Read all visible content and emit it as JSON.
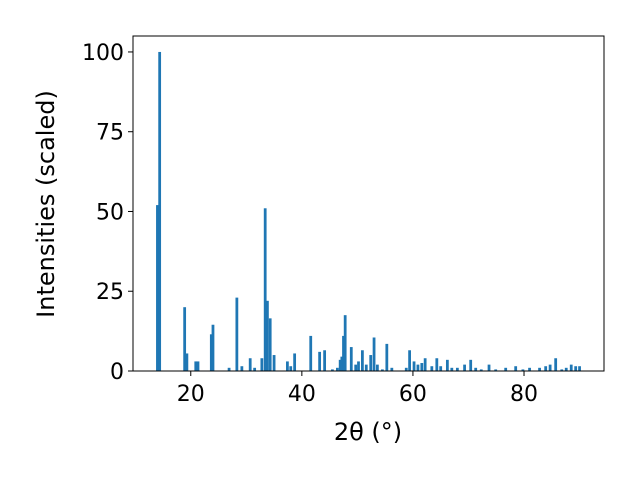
{
  "chart_data": {
    "type": "bar",
    "xlabel": "2θ (°)",
    "ylabel": "Intensities (scaled)",
    "color": "#1f77b4",
    "xlim": [
      9.6,
      94.4
    ],
    "ylim": [
      0,
      105
    ],
    "xticks": [
      20,
      40,
      60,
      80
    ],
    "yticks": [
      0,
      25,
      50,
      75,
      100
    ],
    "x": [
      14.0,
      14.4,
      18.9,
      19.3,
      20.9,
      21.3,
      23.7,
      24.0,
      26.9,
      28.3,
      29.2,
      30.7,
      31.5,
      32.8,
      33.4,
      33.8,
      34.3,
      35.0,
      37.4,
      38.0,
      38.7,
      41.6,
      43.2,
      44.1,
      45.5,
      46.4,
      46.9,
      47.2,
      47.5,
      47.8,
      48.9,
      49.7,
      50.2,
      50.9,
      51.6,
      52.4,
      53.0,
      53.6,
      54.5,
      55.3,
      56.2,
      58.8,
      59.4,
      60.2,
      60.9,
      61.6,
      62.2,
      63.4,
      64.3,
      65.0,
      66.2,
      67.0,
      68.0,
      69.3,
      70.4,
      71.3,
      72.3,
      73.7,
      74.9,
      76.7,
      78.5,
      79.8,
      81.0,
      82.8,
      83.9,
      84.7,
      85.7,
      86.8,
      87.6,
      88.5,
      89.3,
      90.0
    ],
    "values": [
      52,
      100,
      20,
      5.5,
      3,
      3,
      11.5,
      14.5,
      1,
      23,
      1.5,
      4,
      1,
      4,
      51,
      22,
      16.5,
      5,
      3,
      1.5,
      5.5,
      11,
      6,
      6.5,
      0.5,
      1,
      3.5,
      4.5,
      11,
      17.5,
      7.5,
      2,
      3,
      6.5,
      2,
      5,
      10.5,
      2,
      0.5,
      8.5,
      1,
      1,
      6.5,
      3,
      2,
      2.5,
      4,
      1.5,
      4,
      1.5,
      3.5,
      1,
      1,
      2,
      3.5,
      1,
      0.5,
      2,
      0.5,
      1,
      1.5,
      0.5,
      1,
      1,
      1.5,
      2,
      4,
      0.5,
      1,
      2,
      1.5,
      1.5
    ]
  }
}
